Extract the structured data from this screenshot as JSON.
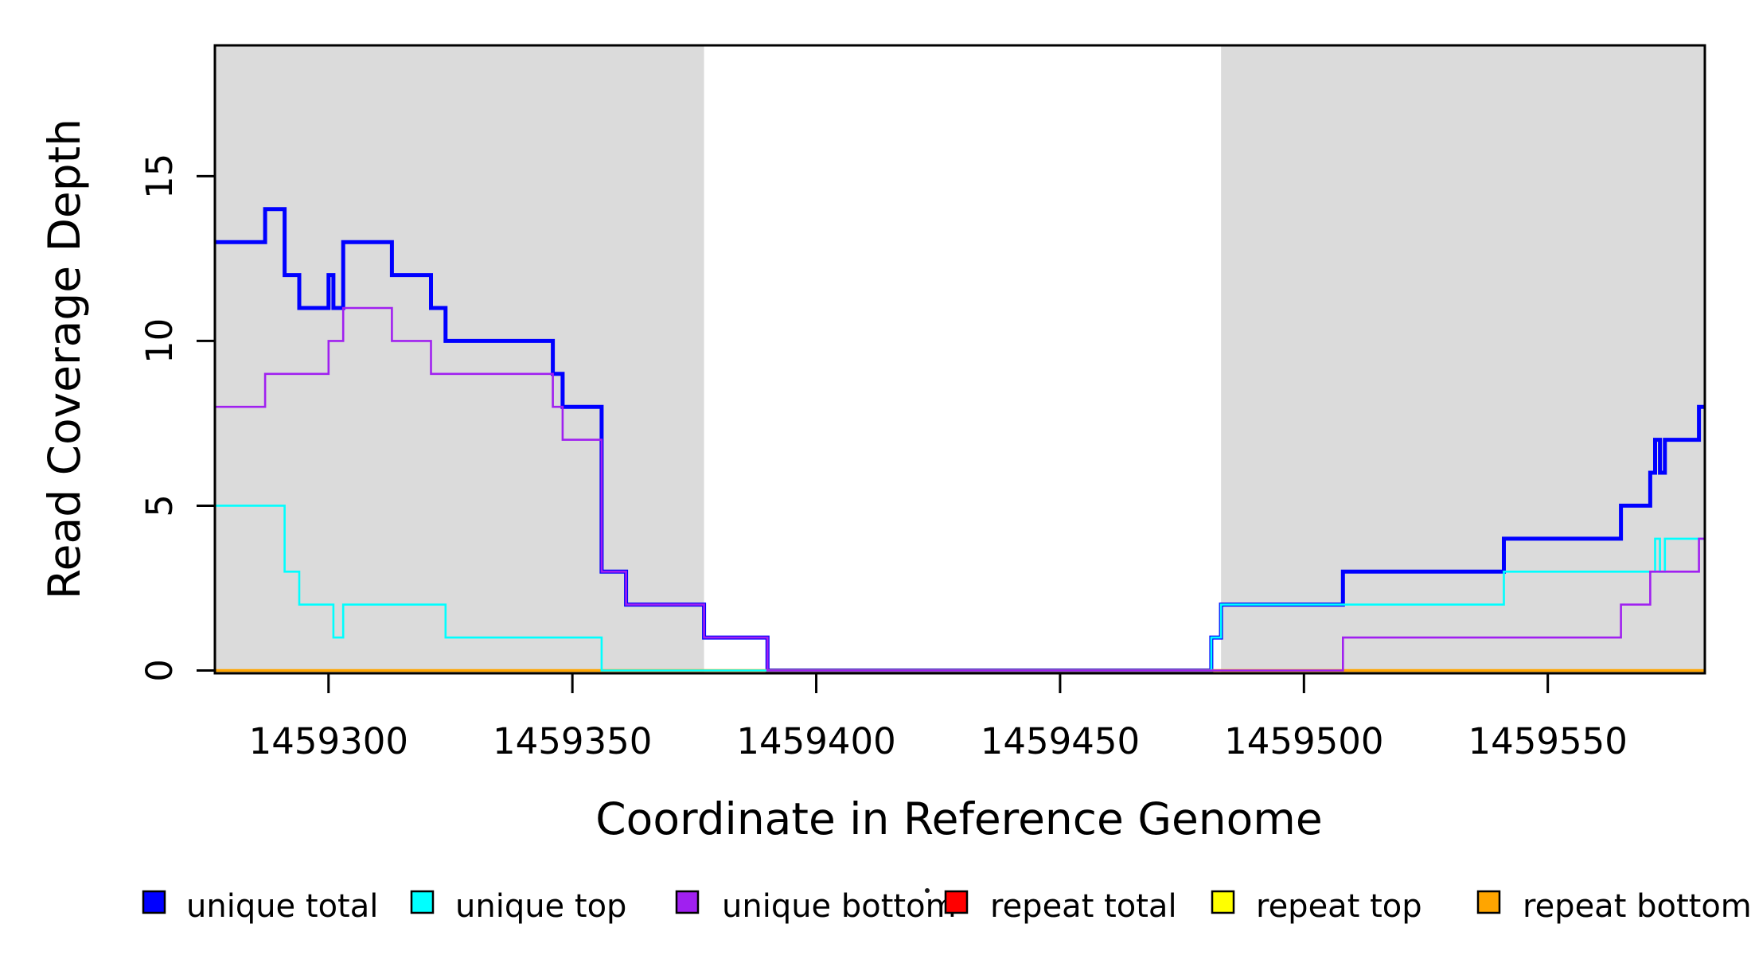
{
  "chart_data": {
    "type": "line",
    "subtype": "step-coverage",
    "title": "",
    "xlabel": "Coordinate in Reference Genome",
    "ylabel": "Read Coverage Depth",
    "xlim": [
      1459276.7,
      1459582.2
    ],
    "ylim": [
      -0.085,
      18.97
    ],
    "x_ticks": [
      1459300,
      1459350,
      1459400,
      1459450,
      1459500,
      1459550
    ],
    "y_ticks": [
      0,
      5,
      10,
      15
    ],
    "grid": false,
    "shade_color": "#DBDBDB",
    "shaded_regions": [
      {
        "name": "repeat-region-1",
        "start": 1459276.7,
        "end": 1459377
      },
      {
        "name": "repeat-region-2",
        "start": 1459483,
        "end": 1459582.2
      }
    ],
    "series": [
      {
        "name": "unique total",
        "color": "#0000FF",
        "width": 5,
        "steps": [
          [
            1459276.7,
            13
          ],
          [
            1459287,
            14
          ],
          [
            1459291,
            12
          ],
          [
            1459294,
            11
          ],
          [
            1459300,
            12
          ],
          [
            1459301,
            11
          ],
          [
            1459303,
            13
          ],
          [
            1459313,
            12
          ],
          [
            1459321,
            11
          ],
          [
            1459324,
            10
          ],
          [
            1459346,
            9
          ],
          [
            1459348,
            8
          ],
          [
            1459356,
            3
          ],
          [
            1459361,
            2
          ],
          [
            1459377,
            1
          ],
          [
            1459390,
            0
          ],
          [
            1459481,
            1
          ],
          [
            1459483,
            2
          ],
          [
            1459508,
            3
          ],
          [
            1459541,
            4
          ],
          [
            1459565,
            5
          ],
          [
            1459571,
            6
          ],
          [
            1459572,
            7
          ],
          [
            1459573,
            6
          ],
          [
            1459574,
            7
          ],
          [
            1459581,
            8
          ]
        ]
      },
      {
        "name": "repeat total",
        "color": "#FF0000",
        "width": 3,
        "steps": [
          [
            1459276.7,
            0
          ]
        ]
      },
      {
        "name": "repeat top",
        "color": "#FFFF00",
        "width": 3,
        "steps": [
          [
            1459276.7,
            0
          ]
        ]
      },
      {
        "name": "repeat bottom",
        "color": "#FFA500",
        "width": 3.5,
        "steps": [
          [
            1459276.7,
            0
          ]
        ]
      },
      {
        "name": "unique top",
        "color": "#00FFFF",
        "width": 2.6,
        "steps": [
          [
            1459276.7,
            5
          ],
          [
            1459291,
            3
          ],
          [
            1459294,
            2
          ],
          [
            1459301,
            1
          ],
          [
            1459303,
            2
          ],
          [
            1459324,
            1
          ],
          [
            1459356,
            0
          ],
          [
            1459481,
            1
          ],
          [
            1459483,
            2
          ],
          [
            1459541,
            3
          ],
          [
            1459572,
            4
          ],
          [
            1459573,
            3
          ],
          [
            1459574,
            4
          ]
        ]
      },
      {
        "name": "unique bottom",
        "color": "#A020F0",
        "width": 2.6,
        "steps": [
          [
            1459276.7,
            8
          ],
          [
            1459287,
            9
          ],
          [
            1459300,
            10
          ],
          [
            1459303,
            11
          ],
          [
            1459313,
            10
          ],
          [
            1459321,
            9
          ],
          [
            1459346,
            8
          ],
          [
            1459348,
            7
          ],
          [
            1459356,
            3
          ],
          [
            1459361,
            2
          ],
          [
            1459377,
            1
          ],
          [
            1459390,
            0
          ],
          [
            1459508,
            1
          ],
          [
            1459565,
            2
          ],
          [
            1459571,
            3
          ],
          [
            1459581,
            4
          ]
        ]
      }
    ],
    "legend": {
      "position": "bottom",
      "items": [
        {
          "label": "unique total",
          "color": "#0000FF"
        },
        {
          "label": "unique top",
          "color": "#00FFFF"
        },
        {
          "label": "unique bottom",
          "color": "#A020F0"
        },
        {
          "label": "repeat total",
          "color": "#FF0000"
        },
        {
          "label": "repeat top",
          "color": "#FFFF00"
        },
        {
          "label": "repeat bottom",
          "color": "#FFA500"
        }
      ]
    },
    "axis_color": "#000000",
    "background_color": "#FFFFFF"
  }
}
